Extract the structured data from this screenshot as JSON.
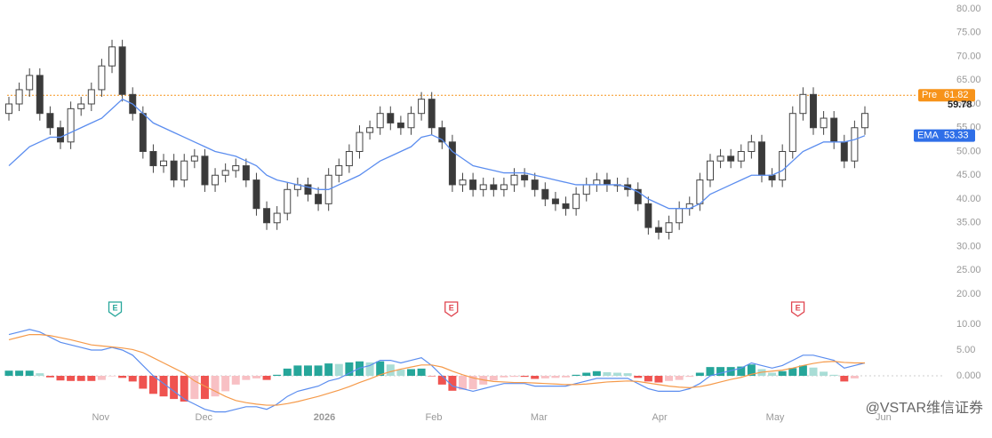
{
  "chart_data": [
    {
      "type": "candlestick",
      "open": [
        58,
        60,
        63,
        66,
        58,
        55,
        52,
        59,
        60,
        63,
        68,
        72,
        62,
        58,
        50,
        47,
        48,
        44,
        48,
        49,
        43,
        45,
        46,
        47,
        44,
        38,
        35,
        37,
        42,
        43,
        41,
        39,
        45,
        47,
        50,
        54,
        55,
        58,
        56,
        55,
        58,
        61,
        55,
        52,
        43,
        44,
        42,
        43,
        42,
        43,
        45,
        44,
        42,
        40,
        39,
        38,
        41,
        43,
        44,
        43,
        43,
        42,
        39,
        34,
        33,
        35,
        38,
        39,
        44,
        48,
        49,
        48,
        50,
        52,
        45,
        44,
        50,
        58,
        62,
        55,
        57,
        52,
        48,
        55
      ],
      "high": [
        61.5,
        64.5,
        67.5,
        67.5,
        59.5,
        56.5,
        60.5,
        61.5,
        64.5,
        69.5,
        73.5,
        73.5,
        63.5,
        59.5,
        51.5,
        49.5,
        49.5,
        49.5,
        50.5,
        50.5,
        46.5,
        47.5,
        48.5,
        48.5,
        45.5,
        39.5,
        38.5,
        43.5,
        44.5,
        44.5,
        42.5,
        46.5,
        48.5,
        51.5,
        55.5,
        56.5,
        59.5,
        59.5,
        57.5,
        59.5,
        62.5,
        62.5,
        56.5,
        53.5,
        45.5,
        45.5,
        44.5,
        44.5,
        44.5,
        46.5,
        46.5,
        45.5,
        43.5,
        41.5,
        40.5,
        42.5,
        44.5,
        45.5,
        45.5,
        44.5,
        44.5,
        43.5,
        40.5,
        35.5,
        36.5,
        39.5,
        40.5,
        45.5,
        49.5,
        50.5,
        50.5,
        51.5,
        53.5,
        53.5,
        46.5,
        51.5,
        59.5,
        63.5,
        63.5,
        58.5,
        58.5,
        53.5,
        56.5,
        59.5
      ],
      "low": [
        56.5,
        58.5,
        61.5,
        56.5,
        53.5,
        50.5,
        50.5,
        57.5,
        58.5,
        61.5,
        66.5,
        60.5,
        56.5,
        48.5,
        45.5,
        45.5,
        42.5,
        42.5,
        46.5,
        41.5,
        41.5,
        43.5,
        44.5,
        42.5,
        36.5,
        33.5,
        33.5,
        35.5,
        40.5,
        39.5,
        37.5,
        37.5,
        43.5,
        45.5,
        48.5,
        52.5,
        53.5,
        54.5,
        53.5,
        53.5,
        56.5,
        53.5,
        50.5,
        41.5,
        41.5,
        40.5,
        40.5,
        40.5,
        40.5,
        41.5,
        42.5,
        40.5,
        38.5,
        37.5,
        36.5,
        36.5,
        39.5,
        41.5,
        41.5,
        41.5,
        40.5,
        37.5,
        32.5,
        31.5,
        31.5,
        33.5,
        36.5,
        37.5,
        42.5,
        46.5,
        46.5,
        46.5,
        48.5,
        43.5,
        42.5,
        42.5,
        48.5,
        56.5,
        53.5,
        53.5,
        50.5,
        46.5,
        46.5,
        53.5
      ],
      "close": [
        60,
        63,
        66,
        58,
        55,
        52,
        59,
        60,
        63,
        68,
        72,
        62,
        58,
        50,
        47,
        48,
        44,
        48,
        49,
        43,
        45,
        46,
        47,
        44,
        38,
        35,
        37,
        42,
        43,
        41,
        39,
        45,
        47,
        50,
        54,
        55,
        58,
        56,
        55,
        58,
        61,
        55,
        52,
        43,
        44,
        42,
        43,
        42,
        43,
        45,
        44,
        42,
        40,
        39,
        38,
        41,
        43,
        44,
        43,
        43,
        42,
        39,
        34,
        33,
        35,
        38,
        39,
        44,
        48,
        49,
        48,
        50,
        52,
        45,
        44,
        50,
        58,
        62,
        55,
        57,
        52,
        48,
        55,
        58
      ],
      "ema": {
        "name": "EMA",
        "color": "#5b8def",
        "values": [
          47,
          49,
          51,
          52,
          53,
          53,
          54,
          55,
          56,
          57,
          59,
          61,
          60,
          58,
          56,
          55,
          54,
          53,
          52,
          51,
          50,
          49.5,
          49,
          48,
          47,
          45,
          44,
          43.5,
          43,
          42.5,
          42,
          42,
          43,
          44,
          45,
          46.5,
          48,
          49,
          50,
          51,
          53,
          53.5,
          52.5,
          50,
          48.5,
          47,
          46.5,
          46,
          45.5,
          45.5,
          45.5,
          45,
          44.5,
          44,
          43.5,
          43,
          43,
          43,
          43,
          43,
          42.5,
          41.5,
          40,
          39,
          38,
          38,
          38,
          39,
          41,
          42,
          43,
          44,
          45,
          45,
          45,
          46,
          48,
          50,
          51,
          52,
          52,
          52,
          52.5,
          53.33
        ]
      },
      "pre_market": {
        "name": "Pre",
        "value": 61.82,
        "color": "#f7931a"
      },
      "last_price": 59.78,
      "earnings": [
        {
          "x": 10.3,
          "label": "E",
          "color": "#26a69a"
        },
        {
          "x": 42.9,
          "label": "E",
          "color": "#e0454f"
        },
        {
          "x": 76.5,
          "label": "E",
          "color": "#e0454f"
        }
      ],
      "xlim": [
        0,
        83
      ],
      "xticks": [
        {
          "value": 8.9,
          "label": "Nov"
        },
        {
          "value": 18.9,
          "label": "Dec"
        },
        {
          "value": 30.6,
          "label": "2026"
        },
        {
          "value": 41.2,
          "label": "Feb"
        },
        {
          "value": 51.4,
          "label": "Mar"
        },
        {
          "value": 63.1,
          "label": "Apr"
        },
        {
          "value": 74.3,
          "label": "May"
        },
        {
          "value": 84.8,
          "label": "Jun"
        }
      ],
      "ylim": [
        18,
        82
      ],
      "yticks": [
        {
          "value": 80,
          "label": "80.00"
        },
        {
          "value": 75,
          "label": "75.00"
        },
        {
          "value": 70,
          "label": "70.00"
        },
        {
          "value": 65,
          "label": "65.00"
        },
        {
          "value": 60,
          "label": "60.00"
        },
        {
          "value": 55,
          "label": "55.00"
        },
        {
          "value": 50,
          "label": "50.00"
        },
        {
          "value": 45,
          "label": "45.00"
        },
        {
          "value": 40,
          "label": "40.00"
        },
        {
          "value": 35,
          "label": "35.00"
        },
        {
          "value": 30,
          "label": "30.00"
        },
        {
          "value": 25,
          "label": "25.00"
        },
        {
          "value": 20,
          "label": "20.00"
        }
      ]
    },
    {
      "type": "macd",
      "macd": {
        "color": "#5b8def",
        "values": [
          8,
          8.5,
          9,
          8.5,
          7.5,
          6.5,
          6,
          5.5,
          5,
          5,
          5.5,
          5,
          4,
          2,
          0,
          -1.5,
          -3,
          -4.5,
          -5.5,
          -6.5,
          -7,
          -7,
          -6.5,
          -6,
          -6,
          -6.5,
          -5.5,
          -4,
          -3,
          -2.5,
          -2,
          -1,
          -0.5,
          0.5,
          1.5,
          2,
          3,
          3,
          2.5,
          3,
          3.5,
          2,
          0,
          -2,
          -2.5,
          -3,
          -2.5,
          -2,
          -1.5,
          -1.5,
          -1.5,
          -2,
          -2,
          -2,
          -2,
          -1.5,
          -1,
          -0.5,
          -0.5,
          -0.5,
          -0.5,
          -1.5,
          -2.5,
          -3,
          -3,
          -3,
          -2.5,
          -1.5,
          0,
          0.5,
          1,
          1.5,
          2.5,
          2,
          1.5,
          2,
          3,
          4,
          4,
          3.5,
          3,
          1.5,
          2,
          2.5
        ]
      },
      "signal": {
        "color": "#f59a4a",
        "values": [
          7,
          7.5,
          8,
          8,
          7.8,
          7.4,
          7,
          6.5,
          6,
          5.8,
          5.6,
          5.4,
          5.1,
          4.5,
          3.5,
          2.5,
          1.5,
          0.5,
          -1,
          -2,
          -3,
          -4,
          -4.8,
          -5.2,
          -5.5,
          -5.7,
          -5.7,
          -5.4,
          -5,
          -4.5,
          -4,
          -3.4,
          -2.8,
          -2.1,
          -1.3,
          -0.6,
          0.2,
          0.8,
          1.3,
          1.7,
          2.1,
          2.1,
          1.7,
          0.9,
          0.2,
          -0.4,
          -0.8,
          -1.1,
          -1.2,
          -1.3,
          -1.3,
          -1.4,
          -1.5,
          -1.6,
          -1.7,
          -1.7,
          -1.6,
          -1.4,
          -1.2,
          -1.1,
          -1,
          -1.1,
          -1.4,
          -1.7,
          -2,
          -2.2,
          -2.3,
          -2.1,
          -1.7,
          -1.2,
          -0.7,
          -0.3,
          0.3,
          0.7,
          0.9,
          1.1,
          1.5,
          2,
          2.4,
          2.7,
          2.8,
          2.6,
          2.5,
          2.5
        ]
      },
      "histogram": [
        1,
        1,
        1,
        0.5,
        -0.3,
        -0.9,
        -1,
        -1,
        -1,
        -0.8,
        -0.1,
        -0.4,
        -1.1,
        -2.5,
        -3.5,
        -4,
        -4.5,
        -5,
        -4.5,
        -4.5,
        -4,
        -3,
        -1.7,
        -0.8,
        -0.5,
        -0.8,
        0.2,
        1.4,
        2,
        2,
        2,
        2.4,
        2.3,
        2.6,
        2.8,
        2.6,
        2.8,
        2.2,
        1.2,
        1.3,
        1.4,
        -0.1,
        -1.7,
        -2.9,
        -2.7,
        -2.6,
        -1.7,
        -0.9,
        -0.3,
        -0.2,
        -0.2,
        -0.6,
        -0.5,
        -0.4,
        -0.3,
        0.2,
        0.6,
        0.9,
        0.7,
        0.6,
        0.5,
        -0.4,
        -1.1,
        -1.3,
        -1,
        -0.8,
        -0.2,
        0.6,
        1.7,
        1.7,
        1.7,
        1.8,
        2.2,
        1.3,
        0.6,
        0.9,
        1.5,
        2,
        1.6,
        0.8,
        0.2,
        -1.1,
        -0.5,
        0
      ],
      "ylim": [
        -10,
        12
      ],
      "yticks": [
        {
          "value": 10,
          "label": "10.00"
        },
        {
          "value": 5,
          "label": "5.00"
        },
        {
          "value": 0,
          "label": "0.000"
        }
      ]
    }
  ],
  "watermark": "@VSTAR维信证券"
}
